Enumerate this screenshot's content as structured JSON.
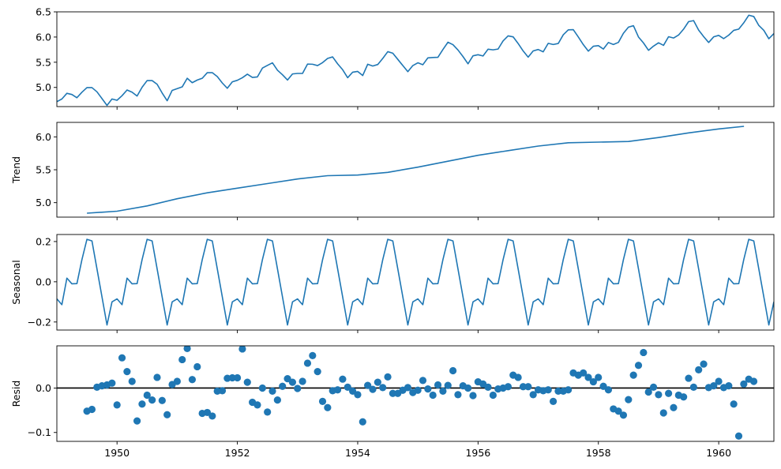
{
  "chart_data": [
    {
      "type": "line",
      "ylabel": "",
      "xlim": [
        1949.0,
        1960.917
      ],
      "ylim": [
        4.62,
        6.5
      ],
      "yticks": [
        5.0,
        5.5,
        6.0,
        6.5
      ],
      "ytick_labels": [
        "5.0",
        "5.5",
        "6.0",
        "6.5"
      ],
      "color": "#1f77b4",
      "series": [
        {
          "x_start": 1949.0,
          "x_step": 0.08333,
          "values": [
            4.718,
            4.771,
            4.883,
            4.86,
            4.796,
            4.905,
            4.997,
            4.997,
            4.913,
            4.779,
            4.644,
            4.771,
            4.745,
            4.836,
            4.949,
            4.906,
            4.829,
            5.004,
            5.136,
            5.136,
            5.063,
            4.89,
            4.736,
            4.942,
            4.977,
            5.011,
            5.182,
            5.094,
            5.147,
            5.182,
            5.293,
            5.293,
            5.215,
            5.088,
            4.984,
            5.112,
            5.142,
            5.193,
            5.263,
            5.199,
            5.209,
            5.384,
            5.438,
            5.489,
            5.342,
            5.252,
            5.147,
            5.268,
            5.278,
            5.278,
            5.464,
            5.46,
            5.434,
            5.493,
            5.576,
            5.606,
            5.468,
            5.352,
            5.193,
            5.303,
            5.318,
            5.236,
            5.46,
            5.425,
            5.455,
            5.576,
            5.71,
            5.68,
            5.557,
            5.434,
            5.313,
            5.434,
            5.489,
            5.451,
            5.587,
            5.595,
            5.598,
            5.753,
            5.897,
            5.849,
            5.743,
            5.613,
            5.469,
            5.628,
            5.649,
            5.624,
            5.759,
            5.746,
            5.762,
            5.924,
            6.023,
            6.004,
            5.872,
            5.724,
            5.602,
            5.724,
            5.753,
            5.707,
            5.875,
            5.852,
            5.872,
            6.045,
            6.142,
            6.146,
            6.001,
            5.849,
            5.72,
            5.817,
            5.829,
            5.762,
            5.892,
            5.852,
            5.894,
            6.075,
            6.196,
            6.225,
            6.001,
            5.883,
            5.737,
            5.82,
            5.886,
            5.835,
            6.006,
            5.981,
            6.04,
            6.157,
            6.306,
            6.326,
            6.138,
            6.009,
            5.892,
            6.004,
            6.033,
            5.969,
            6.038,
            6.133,
            6.157,
            6.282,
            6.433,
            6.407,
            6.23,
            6.133,
            5.966,
            6.068
          ]
        }
      ]
    },
    {
      "type": "line",
      "ylabel": "Trend",
      "xlim": [
        1949.0,
        1960.917
      ],
      "ylim": [
        4.78,
        6.22
      ],
      "yticks": [
        5.0,
        5.5,
        6.0
      ],
      "ytick_labels": [
        "5.0",
        "5.5",
        "6.0"
      ],
      "color": "#1f77b4",
      "series": [
        {
          "x": [
            1949.5,
            1950.0,
            1950.5,
            1951.0,
            1951.5,
            1952.0,
            1952.5,
            1953.0,
            1953.5,
            1954.0,
            1954.5,
            1955.0,
            1955.5,
            1956.0,
            1956.5,
            1957.0,
            1957.5,
            1958.0,
            1958.5,
            1959.0,
            1959.5,
            1960.0,
            1960.42
          ],
          "values": [
            4.84,
            4.87,
            4.95,
            5.06,
            5.15,
            5.22,
            5.29,
            5.36,
            5.41,
            5.42,
            5.46,
            5.54,
            5.63,
            5.72,
            5.79,
            5.86,
            5.91,
            5.92,
            5.93,
            5.99,
            6.06,
            6.12,
            6.16
          ]
        }
      ]
    },
    {
      "type": "line",
      "ylabel": "Seasonal",
      "xlim": [
        1949.0,
        1960.917
      ],
      "ylim": [
        -0.24,
        0.235
      ],
      "yticks": [
        -0.2,
        0.0,
        0.2
      ],
      "ytick_labels": [
        "−0.2",
        "0.0",
        "0.2"
      ],
      "color": "#1f77b4",
      "series": [
        {
          "x_start": 1949.0,
          "x_step": 0.08333,
          "cycles": 12,
          "pattern": [
            -0.085,
            -0.114,
            0.018,
            -0.01,
            -0.009,
            0.11,
            0.211,
            0.203,
            0.064,
            -0.075,
            -0.215,
            -0.1
          ]
        }
      ]
    },
    {
      "type": "scatter",
      "ylabel": "Resid",
      "xlim": [
        1949.0,
        1960.917
      ],
      "ylim": [
        -0.12,
        0.095
      ],
      "yticks": [
        -0.1,
        0.0
      ],
      "ytick_labels": [
        "−0.1",
        "0.0"
      ],
      "xticks": [
        1950,
        1952,
        1954,
        1956,
        1958,
        1960
      ],
      "xtick_labels": [
        "1950",
        "1952",
        "1954",
        "1956",
        "1958",
        "1960"
      ],
      "baseline": 0,
      "color": "#1f77b4",
      "series": [
        {
          "x_start": 1949.5,
          "x_step": 0.08333,
          "values": [
            -0.052,
            -0.048,
            0.002,
            0.005,
            0.007,
            0.011,
            -0.038,
            0.068,
            0.037,
            0.015,
            -0.074,
            -0.036,
            -0.016,
            -0.027,
            0.024,
            -0.028,
            -0.06,
            0.008,
            0.015,
            0.064,
            0.089,
            0.019,
            0.048,
            -0.057,
            -0.055,
            -0.063,
            -0.007,
            -0.006,
            0.022,
            0.023,
            0.023,
            0.088,
            0.013,
            -0.032,
            -0.038,
            0.0,
            -0.054,
            -0.007,
            -0.027,
            0.004,
            0.021,
            0.013,
            -0.001,
            0.015,
            0.056,
            0.073,
            0.037,
            -0.03,
            -0.044,
            -0.006,
            -0.004,
            0.02,
            0.002,
            -0.007,
            -0.015,
            -0.076,
            0.006,
            -0.003,
            0.013,
            0.001,
            0.025,
            -0.012,
            -0.012,
            -0.005,
            0.001,
            -0.01,
            -0.005,
            0.017,
            -0.002,
            -0.016,
            0.007,
            -0.007,
            0.006,
            0.039,
            -0.015,
            0.005,
            0.0,
            -0.017,
            0.014,
            0.009,
            0.002,
            -0.016,
            -0.002,
            0.0,
            0.003,
            0.029,
            0.024,
            0.003,
            0.003,
            -0.015,
            -0.004,
            -0.006,
            -0.004,
            -0.03,
            -0.007,
            -0.007,
            -0.004,
            0.034,
            0.029,
            0.034,
            0.024,
            0.014,
            0.024,
            0.004,
            -0.004,
            -0.047,
            -0.052,
            -0.061,
            -0.026,
            0.029,
            0.051,
            0.08,
            -0.009,
            0.002,
            -0.015,
            -0.056,
            -0.012,
            -0.044,
            -0.016,
            -0.02,
            0.022,
            0.002,
            0.041,
            0.054,
            0.001,
            0.005,
            0.015,
            0.001,
            0.005,
            -0.036,
            -0.108,
            0.009,
            0.02,
            0.015
          ]
        }
      ]
    }
  ]
}
